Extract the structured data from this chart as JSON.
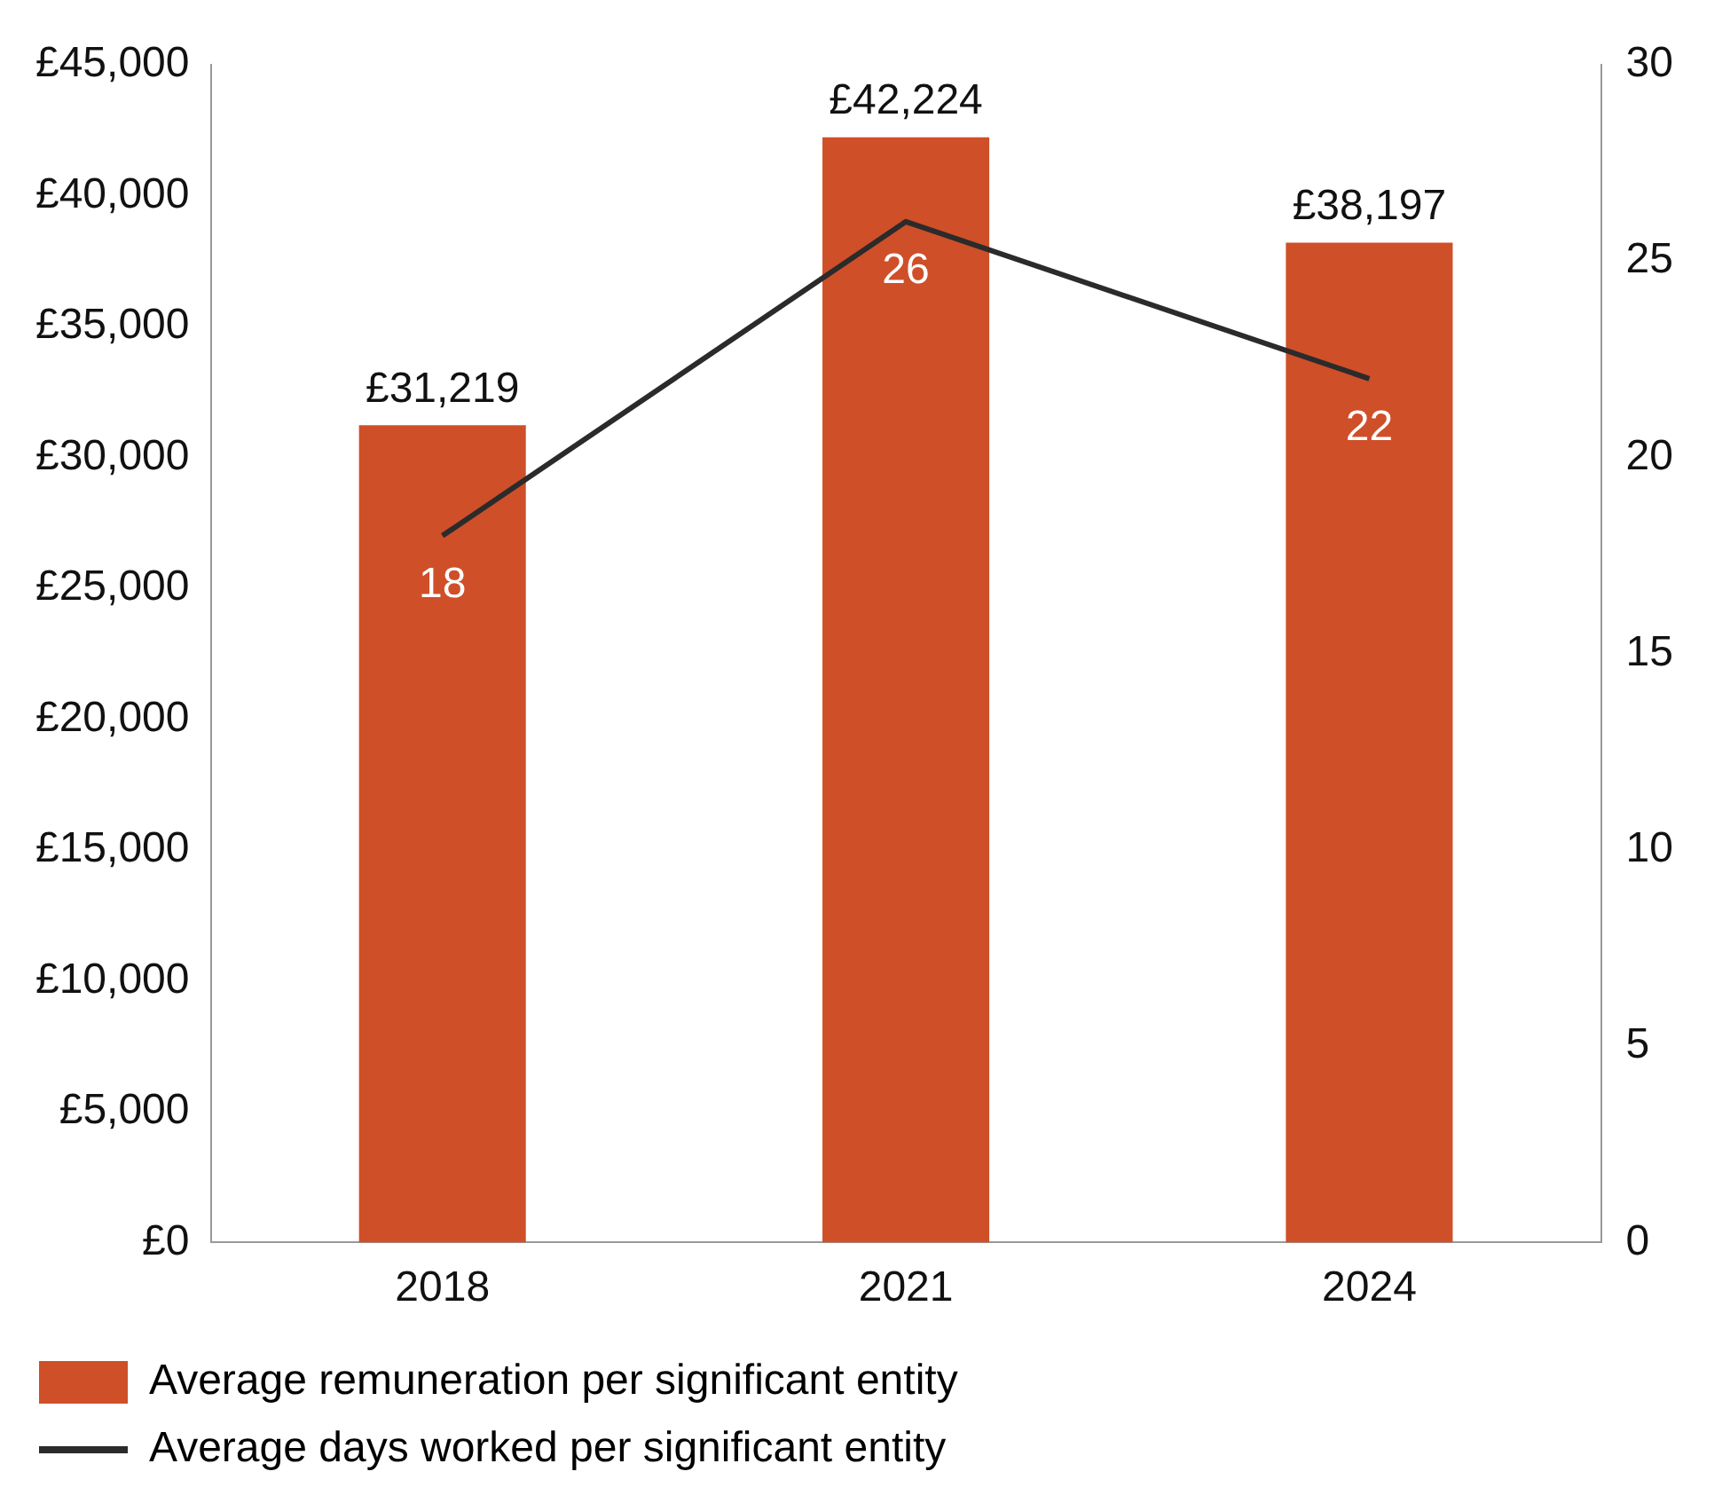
{
  "chart_data": {
    "type": "bar",
    "categories": [
      "2018",
      "2021",
      "2024"
    ],
    "series": [
      {
        "name": "Average remuneration per significant entity",
        "color": "#cf4f29",
        "values": [
          31219,
          42224,
          38197
        ],
        "value_labels": [
          "£31,219",
          "£42,224",
          "£38,197"
        ]
      },
      {
        "name": "Average days worked per significant entity",
        "type": "line",
        "axis": "y2",
        "color": "#2b2b2b",
        "values": [
          18,
          26,
          22
        ],
        "value_labels": [
          "18",
          "26",
          "22"
        ],
        "marker": "none",
        "line_style": "solid"
      }
    ],
    "ylim": [
      0,
      45000
    ],
    "yticks": [
      {
        "value": 0,
        "label": "£0"
      },
      {
        "value": 5000,
        "label": "£5,000"
      },
      {
        "value": 10000,
        "label": "£10,000"
      },
      {
        "value": 15000,
        "label": "£15,000"
      },
      {
        "value": 20000,
        "label": "£20,000"
      },
      {
        "value": 25000,
        "label": "£25,000"
      },
      {
        "value": 30000,
        "label": "£30,000"
      },
      {
        "value": 35000,
        "label": "£35,000"
      },
      {
        "value": 40000,
        "label": "£40,000"
      },
      {
        "value": 45000,
        "label": "£45,000"
      }
    ],
    "y2lim": [
      0,
      30
    ],
    "y2ticks": [
      0,
      5,
      10,
      15,
      20,
      25,
      30
    ],
    "grid": false,
    "legend": "bottom"
  }
}
